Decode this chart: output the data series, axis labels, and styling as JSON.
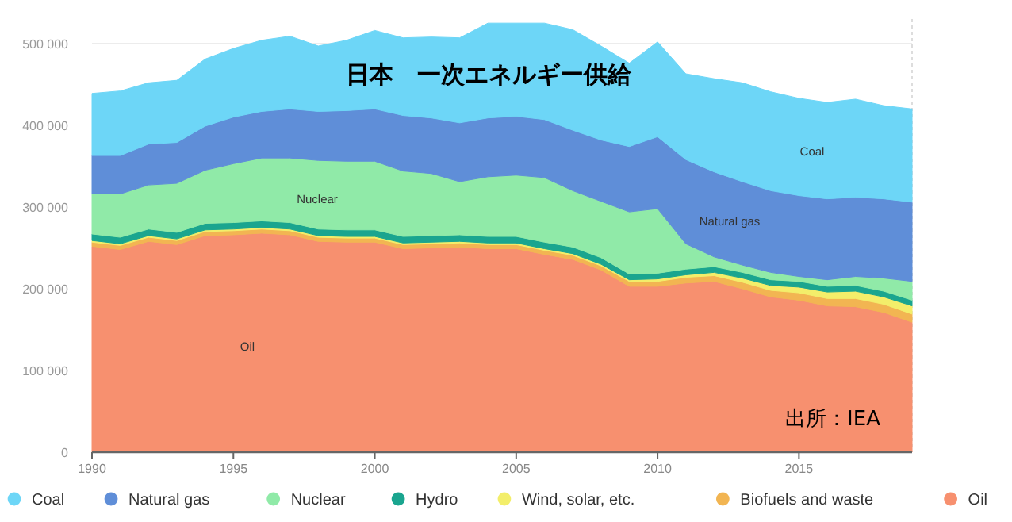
{
  "chart_data": {
    "type": "area",
    "stacked": true,
    "title": "日本　一次エネルギー供給",
    "x": [
      1990,
      1991,
      1992,
      1993,
      1994,
      1995,
      1996,
      1997,
      1998,
      1999,
      2000,
      2001,
      2002,
      2003,
      2004,
      2005,
      2006,
      2007,
      2008,
      2009,
      2010,
      2011,
      2012,
      2013,
      2014,
      2015,
      2016,
      2017,
      2018,
      2019
    ],
    "series": [
      {
        "name": "Oil",
        "color": "#f7906f",
        "values": [
          252000,
          248000,
          258000,
          254000,
          265000,
          266000,
          268000,
          266000,
          258000,
          257000,
          257000,
          249000,
          250000,
          251000,
          249000,
          249000,
          242000,
          236000,
          223000,
          203000,
          203000,
          207000,
          209000,
          200000,
          190000,
          186000,
          179000,
          178000,
          171000,
          159000
        ]
      },
      {
        "name": "Biofuels and waste",
        "color": "#f2b552",
        "values": [
          5000,
          5000,
          5000,
          5000,
          5000,
          5000,
          5000,
          5000,
          5000,
          5000,
          5000,
          5000,
          5000,
          5000,
          5000,
          5000,
          5000,
          5000,
          5000,
          6000,
          6000,
          7000,
          7000,
          8000,
          8000,
          9000,
          9000,
          10000,
          10000,
          10000
        ]
      },
      {
        "name": "Wind, solar, etc.",
        "color": "#f3ee6a",
        "values": [
          2000,
          2000,
          2000,
          2000,
          2000,
          2000,
          2000,
          2000,
          2000,
          2000,
          2000,
          2000,
          2000,
          2000,
          2000,
          2000,
          2000,
          2000,
          2000,
          2000,
          3000,
          3000,
          4000,
          5000,
          6000,
          7000,
          8000,
          9000,
          9000,
          10000
        ]
      },
      {
        "name": "Hydro",
        "color": "#1aa58f",
        "values": [
          8000,
          8000,
          8000,
          8000,
          8000,
          8000,
          8000,
          8000,
          8000,
          8000,
          8000,
          8000,
          8000,
          8000,
          8000,
          8000,
          8000,
          8000,
          8000,
          7000,
          7000,
          7000,
          7000,
          7000,
          7000,
          7000,
          7000,
          7000,
          7000,
          7000
        ]
      },
      {
        "name": "Nuclear",
        "color": "#90eaa8",
        "values": [
          49000,
          53000,
          54000,
          60000,
          65000,
          72000,
          77000,
          79000,
          84000,
          84000,
          84000,
          80000,
          76000,
          65000,
          73000,
          75000,
          79000,
          69000,
          69000,
          76000,
          79000,
          31000,
          12000,
          9000,
          9000,
          6000,
          8000,
          11000,
          16000,
          23000
        ]
      },
      {
        "name": "Natural gas",
        "color": "#5f8ed8",
        "values": [
          47000,
          47000,
          50000,
          50000,
          54000,
          57000,
          57000,
          60000,
          60000,
          62000,
          64000,
          68000,
          68000,
          72000,
          72000,
          72000,
          71000,
          74000,
          75000,
          80000,
          88000,
          103000,
          104000,
          102000,
          100000,
          99000,
          99000,
          97000,
          97000,
          97000
        ]
      },
      {
        "name": "Coal",
        "color": "#6dd6f7",
        "values": [
          76000,
          79000,
          75000,
          76000,
          82000,
          84000,
          87000,
          89000,
          80000,
          86000,
          96000,
          95000,
          99000,
          104000,
          116000,
          114000,
          118000,
          123000,
          115000,
          102000,
          116000,
          105000,
          114000,
          121000,
          121000,
          119000,
          118000,
          120000,
          114000,
          114000
        ]
      }
    ],
    "xlim": [
      1990,
      2019
    ],
    "xticks": [
      1990,
      1995,
      2000,
      2005,
      2010,
      2015
    ],
    "ylim": [
      0,
      530000
    ],
    "yticks": [
      0,
      {
        "value": 100000,
        "label": "100 000"
      },
      {
        "value": 200000,
        "label": "200 000"
      },
      {
        "value": 300000,
        "label": "300 000"
      },
      {
        "value": 400000,
        "label": "400 000"
      },
      {
        "value": 500000,
        "label": "500 000"
      }
    ],
    "grid": "y",
    "legend": "bottom",
    "annotations": [
      "Coal",
      "Natural gas",
      "Nuclear",
      "Oil",
      "出所：IEA"
    ]
  }
}
